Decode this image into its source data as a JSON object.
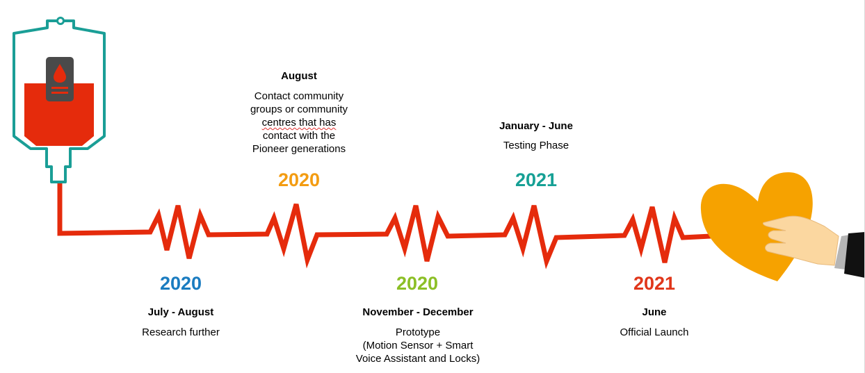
{
  "colors": {
    "line": "#e52b0c",
    "bag_outline": "#1a9e96",
    "blood": "#e52b0c",
    "label_box": "#4a4a4a",
    "heart": "#f6a200",
    "hand_skin": "#fbd7a0",
    "sleeve": "#111111",
    "cuff": "#b5b5b5"
  },
  "icons": {
    "blood_bag": "blood-bag-icon",
    "heart_hand": "heart-in-hand-icon"
  },
  "milestones": [
    {
      "year": "2020",
      "year_color": "#1a7cc0",
      "period": "July - August",
      "description_lines": [
        "Research further"
      ]
    },
    {
      "year": "2020",
      "year_color": "#f39c12",
      "period": "August",
      "description_lines": [
        "Contact community",
        "groups or community",
        "centres that has",
        "contact with the",
        "Pioneer generations"
      ]
    },
    {
      "year": "2020",
      "year_color": "#8cbf26",
      "period": "November - December",
      "description_lines": [
        "Prototype",
        "(Motion Sensor + Smart",
        "Voice Assistant and Locks)"
      ]
    },
    {
      "year": "2021",
      "year_color": "#16a095",
      "period": "January - June",
      "description_lines": [
        "Testing Phase"
      ]
    },
    {
      "year": "2021",
      "year_color": "#e0361a",
      "period": "June",
      "description_lines": [
        "Official Launch"
      ]
    }
  ]
}
